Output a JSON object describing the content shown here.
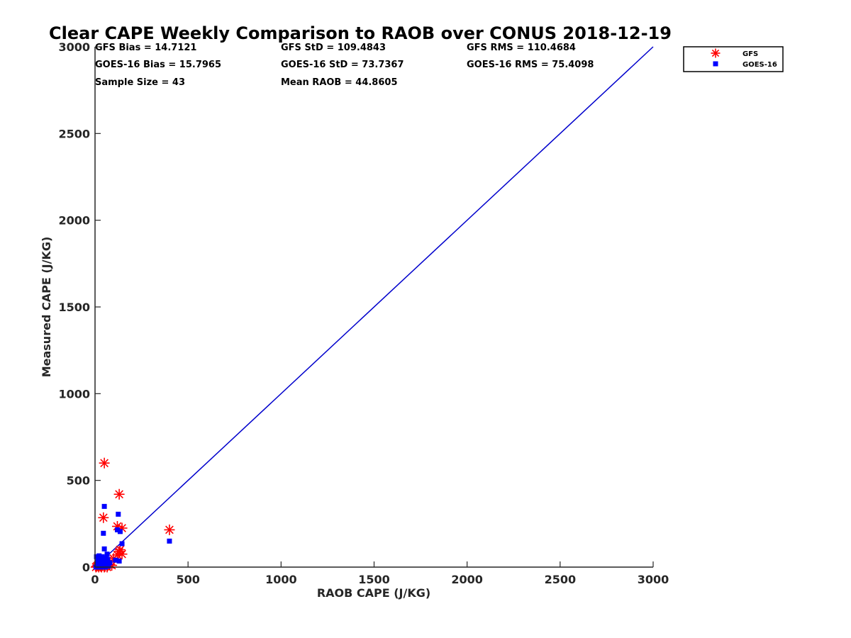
{
  "chart_data": {
    "type": "scatter",
    "title": "Clear CAPE Weekly Comparison to RAOB over CONUS 2018-12-19",
    "xlabel": "RAOB CAPE (J/KG)",
    "ylabel": "Measured CAPE (J/KG)",
    "xlim": [
      0,
      3000
    ],
    "ylim": [
      0,
      3000
    ],
    "xticks": [
      "0",
      "500",
      "1000",
      "1500",
      "2000",
      "2500",
      "3000"
    ],
    "yticks": [
      "0",
      "500",
      "1000",
      "1500",
      "2000",
      "2500",
      "3000"
    ],
    "grid": false,
    "legend_position": "top-right",
    "stats": [
      [
        "GFS Bias = 14.7121",
        "GFS StD = 109.4843",
        "GFS RMS = 110.4684"
      ],
      [
        "GOES-16 Bias = 15.7965",
        "GOES-16 StD = 73.7367",
        "GOES-16 RMS = 75.4098"
      ],
      [
        "Sample Size = 43",
        "Mean RAOB = 44.8605",
        ""
      ]
    ],
    "one_to_one_line": {
      "x": [
        0,
        3000
      ],
      "y": [
        0,
        3000
      ],
      "color": "#0000cc"
    },
    "series": [
      {
        "name": "GFS",
        "marker": "asterisk",
        "color": "#ff0000",
        "points": [
          [
            50,
            600
          ],
          [
            130,
            420
          ],
          [
            45,
            285
          ],
          [
            120,
            235
          ],
          [
            145,
            225
          ],
          [
            400,
            215
          ],
          [
            135,
            100
          ],
          [
            145,
            75
          ],
          [
            120,
            70
          ],
          [
            130,
            90
          ],
          [
            5,
            0
          ],
          [
            10,
            5
          ],
          [
            15,
            10
          ],
          [
            20,
            0
          ],
          [
            25,
            15
          ],
          [
            30,
            5
          ],
          [
            35,
            0
          ],
          [
            40,
            10
          ],
          [
            45,
            20
          ],
          [
            50,
            0
          ],
          [
            55,
            5
          ],
          [
            60,
            30
          ],
          [
            65,
            0
          ],
          [
            70,
            40
          ],
          [
            80,
            15
          ],
          [
            90,
            10
          ],
          [
            100,
            50
          ]
        ]
      },
      {
        "name": "GOES-16",
        "marker": "square",
        "color": "#0000ff",
        "points": [
          [
            50,
            350
          ],
          [
            125,
            305
          ],
          [
            45,
            195
          ],
          [
            120,
            215
          ],
          [
            135,
            205
          ],
          [
            145,
            135
          ],
          [
            400,
            150
          ],
          [
            50,
            105
          ],
          [
            65,
            75
          ],
          [
            110,
            40
          ],
          [
            130,
            35
          ],
          [
            5,
            0
          ],
          [
            8,
            60
          ],
          [
            12,
            30
          ],
          [
            15,
            10
          ],
          [
            18,
            45
          ],
          [
            20,
            5
          ],
          [
            22,
            65
          ],
          [
            25,
            20
          ],
          [
            28,
            50
          ],
          [
            30,
            0
          ],
          [
            32,
            35
          ],
          [
            35,
            10
          ],
          [
            38,
            60
          ],
          [
            40,
            25
          ],
          [
            42,
            5
          ],
          [
            45,
            40
          ],
          [
            48,
            15
          ],
          [
            52,
            30
          ],
          [
            55,
            0
          ],
          [
            58,
            50
          ],
          [
            60,
            20
          ],
          [
            62,
            10
          ],
          [
            68,
            45
          ],
          [
            72,
            5
          ],
          [
            80,
            25
          ]
        ]
      }
    ]
  }
}
